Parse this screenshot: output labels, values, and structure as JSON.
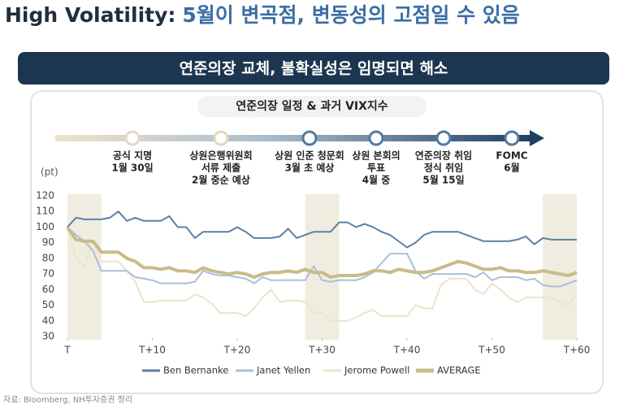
{
  "header": {
    "title_prefix": "High Volatility:",
    "title_rest": "5월이 변곡점, 변동성의 고점일 수 있음"
  },
  "banner": "연준의장 교체, 불확실성은 임명되면 해소",
  "panel_title": "연준의장 일정 & 과거 VIX지수",
  "timeline": {
    "events": [
      {
        "lines": [
          "공식 지명",
          "1월 30일"
        ]
      },
      {
        "lines": [
          "상원은행위원회",
          "서류 제출",
          "2월 중순 예상"
        ]
      },
      {
        "lines": [
          "상원 인준 청문회",
          "3월 초 예상"
        ]
      },
      {
        "lines": [
          "상원 본회의",
          "투표",
          "4월 중"
        ]
      },
      {
        "lines": [
          "연준의장 취임",
          "정식 취임",
          "5월 15일"
        ]
      },
      {
        "lines": [
          "FOMC",
          "6월"
        ]
      }
    ]
  },
  "chart_data": {
    "type": "line",
    "y_unit": "(pt)",
    "x": [
      0,
      1,
      2,
      3,
      4,
      5,
      6,
      7,
      8,
      9,
      10,
      11,
      12,
      13,
      14,
      15,
      16,
      17,
      18,
      19,
      20,
      21,
      22,
      23,
      24,
      25,
      26,
      27,
      28,
      29,
      30,
      31,
      32,
      33,
      34,
      35,
      36,
      37,
      38,
      39,
      40,
      41,
      42,
      43,
      44,
      45,
      46,
      47,
      48,
      49,
      50,
      51,
      52,
      53,
      54,
      55,
      56,
      57,
      58,
      59,
      60
    ],
    "xlim": [
      0,
      60
    ],
    "xticks": [
      {
        "value": 0,
        "label": "T"
      },
      {
        "value": 10,
        "label": "T+10"
      },
      {
        "value": 20,
        "label": "T+20"
      },
      {
        "value": 30,
        "label": "T+30"
      },
      {
        "value": 40,
        "label": "T+40"
      },
      {
        "value": 50,
        "label": "T+50"
      },
      {
        "value": 60,
        "label": "T+60"
      }
    ],
    "ylim": [
      30,
      120
    ],
    "yticks": [
      30,
      40,
      50,
      60,
      70,
      80,
      90,
      100,
      110,
      120
    ],
    "grid": false,
    "shaded_ranges": [
      [
        0,
        4
      ],
      [
        28,
        32
      ],
      [
        56,
        60
      ]
    ],
    "shade_color": "#f1ece0",
    "series": [
      {
        "name": "Ben Bernanke",
        "color": "#5b80a5",
        "width": 2,
        "values": [
          100,
          106,
          105,
          105,
          105,
          106,
          110,
          104,
          106,
          104,
          104,
          104,
          107,
          100,
          100,
          93,
          97,
          97,
          97,
          97,
          100,
          97,
          93,
          93,
          93,
          94,
          99,
          93,
          95,
          97,
          97,
          97,
          103,
          103,
          100,
          102,
          100,
          97,
          95,
          91,
          87,
          90,
          95,
          97,
          97,
          97,
          97,
          95,
          93,
          91,
          91,
          91,
          91,
          92,
          94,
          89,
          93,
          92,
          92,
          92,
          92
        ]
      },
      {
        "name": "Janet Yellen",
        "color": "#a9c0d6",
        "width": 2,
        "values": [
          100,
          95,
          91,
          85,
          72,
          72,
          72,
          72,
          68,
          67,
          66,
          64,
          64,
          64,
          64,
          65,
          72,
          70,
          69,
          69,
          68,
          67,
          64,
          68,
          66,
          66,
          66,
          66,
          66,
          75,
          66,
          65,
          66,
          66,
          66,
          68,
          71,
          77,
          83,
          83,
          83,
          72,
          67,
          70,
          70,
          70,
          70,
          70,
          68,
          71,
          66,
          68,
          68,
          68,
          66,
          67,
          63,
          62,
          62,
          64,
          66
        ]
      },
      {
        "name": "Jerome Powell",
        "color": "#ebe4cd",
        "width": 2,
        "values": [
          100,
          80,
          75,
          92,
          78,
          78,
          78,
          72,
          65,
          52,
          52,
          53,
          53,
          53,
          53,
          57,
          55,
          51,
          45,
          45,
          45,
          43,
          48,
          55,
          60,
          52,
          53,
          53,
          52,
          45,
          45,
          40,
          40,
          40,
          42,
          45,
          47,
          43,
          43,
          43,
          43,
          50,
          48,
          48,
          63,
          67,
          67,
          67,
          60,
          57,
          64,
          60,
          55,
          52,
          55,
          55,
          55,
          55,
          52,
          50,
          58
        ]
      },
      {
        "name": "AVERAGE",
        "color": "#c8bc88",
        "width": 4,
        "values": [
          100,
          92,
          91,
          91,
          84,
          84,
          84,
          80,
          78,
          74,
          74,
          73,
          74,
          72,
          72,
          71,
          74,
          72,
          71,
          70,
          71,
          70,
          68,
          70,
          71,
          71,
          72,
          71,
          73,
          71,
          71,
          68,
          69,
          69,
          69,
          70,
          72,
          72,
          71,
          73,
          72,
          71,
          71,
          72,
          74,
          76,
          78,
          77,
          75,
          73,
          73,
          74,
          72,
          72,
          71,
          71,
          72,
          71,
          70,
          69,
          71
        ]
      }
    ]
  },
  "source": "자료: Bloomberg, NH투자증권 정리"
}
